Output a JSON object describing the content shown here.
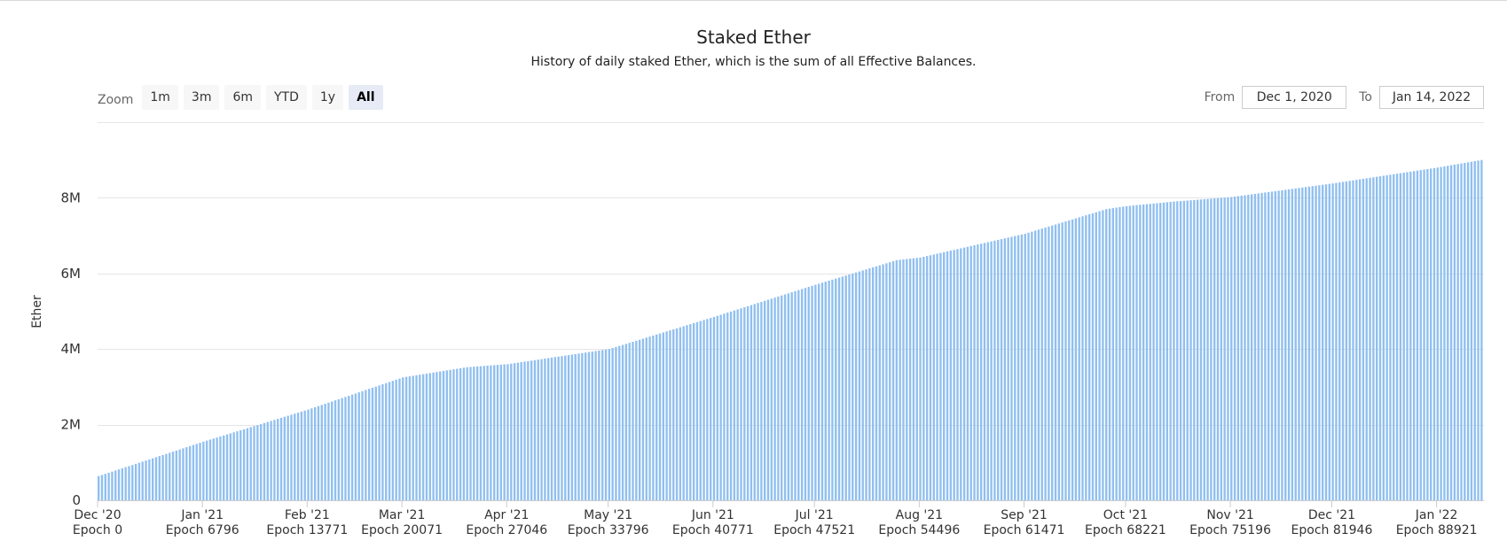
{
  "title": "Staked Ether",
  "subtitle": "History of daily staked Ether, which is the sum of all Effective Balances.",
  "zoom": {
    "label": "Zoom",
    "buttons": [
      {
        "label": "1m",
        "active": false
      },
      {
        "label": "3m",
        "active": false
      },
      {
        "label": "6m",
        "active": false
      },
      {
        "label": "YTD",
        "active": false
      },
      {
        "label": "1y",
        "active": false
      },
      {
        "label": "All",
        "active": true
      }
    ]
  },
  "range": {
    "from_label": "From",
    "from_value": "Dec 1, 2020",
    "to_label": "To",
    "to_value": "Jan 14, 2022"
  },
  "chart_data": {
    "type": "bar",
    "title": "Staked Ether",
    "subtitle": "History of daily staked Ether, which is the sum of all Effective Balances.",
    "ylabel": "Ether",
    "xlabel": "",
    "ylim": [
      0,
      10000000
    ],
    "yticks": [
      {
        "value": 0,
        "label": "0"
      },
      {
        "value": 2000000,
        "label": "2M"
      },
      {
        "value": 4000000,
        "label": "4M"
      },
      {
        "value": 6000000,
        "label": "6M"
      },
      {
        "value": 8000000,
        "label": "8M"
      }
    ],
    "xlim": [
      "2020-12-01",
      "2022-01-14"
    ],
    "xticks": [
      {
        "date": "2020-12-01",
        "label": "Dec '20",
        "sublabel": "Epoch 0"
      },
      {
        "date": "2021-01-01",
        "label": "Jan '21",
        "sublabel": "Epoch 6796"
      },
      {
        "date": "2021-02-01",
        "label": "Feb '21",
        "sublabel": "Epoch 13771"
      },
      {
        "date": "2021-03-01",
        "label": "Mar '21",
        "sublabel": "Epoch 20071"
      },
      {
        "date": "2021-04-01",
        "label": "Apr '21",
        "sublabel": "Epoch 27046"
      },
      {
        "date": "2021-05-01",
        "label": "May '21",
        "sublabel": "Epoch 33796"
      },
      {
        "date": "2021-06-01",
        "label": "Jun '21",
        "sublabel": "Epoch 40771"
      },
      {
        "date": "2021-07-01",
        "label": "Jul '21",
        "sublabel": "Epoch 47521"
      },
      {
        "date": "2021-08-01",
        "label": "Aug '21",
        "sublabel": "Epoch 54496"
      },
      {
        "date": "2021-09-01",
        "label": "Sep '21",
        "sublabel": "Epoch 61471"
      },
      {
        "date": "2021-10-01",
        "label": "Oct '21",
        "sublabel": "Epoch 68221"
      },
      {
        "date": "2021-11-01",
        "label": "Nov '21",
        "sublabel": "Epoch 75196"
      },
      {
        "date": "2021-12-01",
        "label": "Dec '21",
        "sublabel": "Epoch 81946"
      },
      {
        "date": "2022-01-01",
        "label": "Jan '22",
        "sublabel": "Epoch 88921"
      }
    ],
    "grid": true,
    "legend": "none",
    "bar_color": "#90bfef",
    "series": [
      {
        "frequency": "daily",
        "anchors": [
          {
            "date": "2020-12-01",
            "value": 640000
          },
          {
            "date": "2021-01-01",
            "value": 1550000
          },
          {
            "date": "2021-02-01",
            "value": 2400000
          },
          {
            "date": "2021-03-01",
            "value": 3250000
          },
          {
            "date": "2021-03-20",
            "value": 3520000
          },
          {
            "date": "2021-04-01",
            "value": 3600000
          },
          {
            "date": "2021-05-01",
            "value": 4000000
          },
          {
            "date": "2021-06-01",
            "value": 4850000
          },
          {
            "date": "2021-07-01",
            "value": 5700000
          },
          {
            "date": "2021-07-25",
            "value": 6350000
          },
          {
            "date": "2021-08-01",
            "value": 6420000
          },
          {
            "date": "2021-09-01",
            "value": 7050000
          },
          {
            "date": "2021-09-25",
            "value": 7700000
          },
          {
            "date": "2021-10-01",
            "value": 7780000
          },
          {
            "date": "2021-10-15",
            "value": 7900000
          },
          {
            "date": "2021-11-01",
            "value": 8020000
          },
          {
            "date": "2021-12-01",
            "value": 8380000
          },
          {
            "date": "2022-01-01",
            "value": 8800000
          },
          {
            "date": "2022-01-14",
            "value": 9000000
          }
        ]
      }
    ]
  }
}
